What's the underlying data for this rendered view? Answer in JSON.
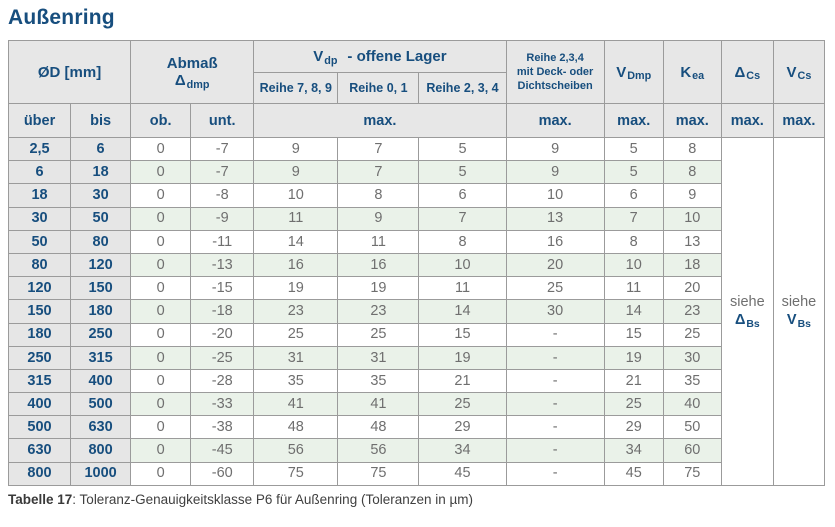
{
  "title": "Außenring",
  "accent_color": "#174e7e",
  "stripe_color": "#eaf2e9",
  "header_bg_color": "#e7e7e7",
  "header": {
    "od": "ØD  [mm]",
    "abmass": {
      "line1": "Abmaß",
      "sym": "Δ",
      "sub": "dmp"
    },
    "vdp": {
      "sym": "V",
      "sub": "dp",
      "rest": "-  offene Lager"
    },
    "reihe_789": "Reihe 7, 8, 9",
    "reihe_01": "Reihe 0, 1",
    "reihe_234": "Reihe 2, 3, 4",
    "deck_lines": [
      "Reihe 2,3,4",
      "mit Deck- oder",
      "Dichtscheiben"
    ],
    "vdmp": {
      "sym": "V",
      "sub": "Dmp"
    },
    "kea": {
      "sym": "K",
      "sub": "ea"
    },
    "dcs": {
      "sym": "Δ",
      "sub": "Cs"
    },
    "vcs": {
      "sym": "V",
      "sub": "Cs"
    },
    "ueber": "über",
    "bis": "bis",
    "ob": "ob.",
    "unt": "unt.",
    "max": "max."
  },
  "see_refs": {
    "dcs": {
      "word": "siehe",
      "sym": "Δ",
      "sub": "Bs"
    },
    "vcs": {
      "word": "siehe",
      "sym": "V",
      "sub": "Bs"
    }
  },
  "rows": [
    [
      "2,5",
      "6",
      "0",
      "-7",
      "9",
      "7",
      "5",
      "9",
      "5",
      "8"
    ],
    [
      "6",
      "18",
      "0",
      "-7",
      "9",
      "7",
      "5",
      "9",
      "5",
      "8"
    ],
    [
      "18",
      "30",
      "0",
      "-8",
      "10",
      "8",
      "6",
      "10",
      "6",
      "9"
    ],
    [
      "30",
      "50",
      "0",
      "-9",
      "11",
      "9",
      "7",
      "13",
      "7",
      "10"
    ],
    [
      "50",
      "80",
      "0",
      "-11",
      "14",
      "11",
      "8",
      "16",
      "8",
      "13"
    ],
    [
      "80",
      "120",
      "0",
      "-13",
      "16",
      "16",
      "10",
      "20",
      "10",
      "18"
    ],
    [
      "120",
      "150",
      "0",
      "-15",
      "19",
      "19",
      "11",
      "25",
      "11",
      "20"
    ],
    [
      "150",
      "180",
      "0",
      "-18",
      "23",
      "23",
      "14",
      "30",
      "14",
      "23"
    ],
    [
      "180",
      "250",
      "0",
      "-20",
      "25",
      "25",
      "15",
      "-",
      "15",
      "25"
    ],
    [
      "250",
      "315",
      "0",
      "-25",
      "31",
      "31",
      "19",
      "-",
      "19",
      "30"
    ],
    [
      "315",
      "400",
      "0",
      "-28",
      "35",
      "35",
      "21",
      "-",
      "21",
      "35"
    ],
    [
      "400",
      "500",
      "0",
      "-33",
      "41",
      "41",
      "25",
      "-",
      "25",
      "40"
    ],
    [
      "500",
      "630",
      "0",
      "-38",
      "48",
      "48",
      "29",
      "-",
      "29",
      "50"
    ],
    [
      "630",
      "800",
      "0",
      "-45",
      "56",
      "56",
      "34",
      "-",
      "34",
      "60"
    ],
    [
      "800",
      "1000",
      "0",
      "-60",
      "75",
      "75",
      "45",
      "-",
      "45",
      "75"
    ]
  ],
  "caption": {
    "label": "Tabelle 17",
    "text": ": Toleranz-Genauigkeitsklasse P6 für Außenring (Toleranzen in µm)"
  }
}
